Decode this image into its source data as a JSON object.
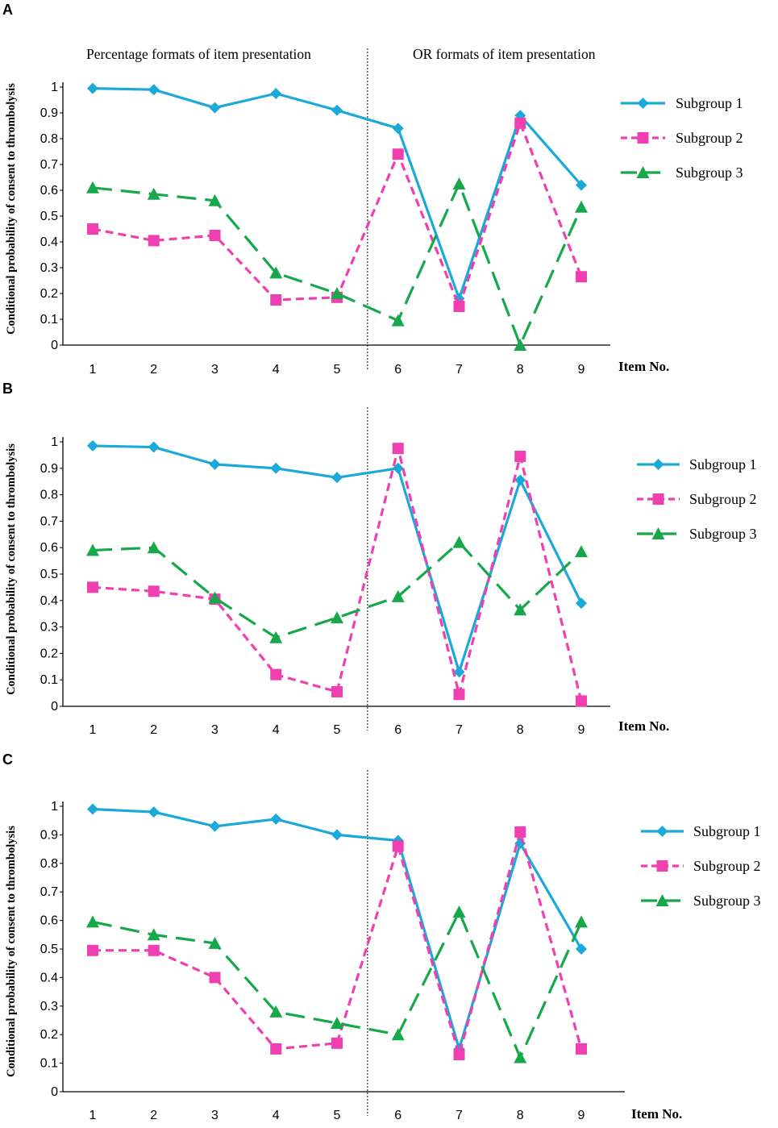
{
  "colors": {
    "subgroup1": "#1aa9d9",
    "subgroup2": "#ef3fb0",
    "subgroup3": "#16a84a",
    "axis": "#000000"
  },
  "chart_data": [
    {
      "type": "line",
      "panel_label": "A",
      "header_left": "Percentage formats of item presentation",
      "header_right": "OR formats of item presentation",
      "ylabel": "Conditional probability of consent to thrombolysis",
      "xlabel": "Item No.",
      "categories": [
        "1",
        "2",
        "3",
        "4",
        "5",
        "6",
        "7",
        "8",
        "9"
      ],
      "y_ticks": [
        "0",
        "0.1",
        "0.2",
        "0.3",
        "0.4",
        "0.5",
        "0.6",
        "0.7",
        "0.8",
        "0.9",
        "1"
      ],
      "ylim": [
        0,
        1
      ],
      "divider_between": [
        5,
        6
      ],
      "legend_position": "right",
      "series": [
        {
          "name": "Subgroup 1",
          "marker": "diamond",
          "style": "solid",
          "values": [
            0.995,
            0.99,
            0.92,
            0.975,
            0.91,
            0.84,
            0.18,
            0.89,
            0.62
          ]
        },
        {
          "name": "Subgroup 2",
          "marker": "square",
          "style": "dashed",
          "values": [
            0.45,
            0.405,
            0.425,
            0.175,
            0.185,
            0.74,
            0.15,
            0.86,
            0.265
          ]
        },
        {
          "name": "Subgroup 3",
          "marker": "triangle",
          "style": "longdash",
          "values": [
            0.61,
            0.585,
            0.56,
            0.28,
            0.2,
            0.095,
            0.625,
            0.0,
            0.535
          ]
        }
      ]
    },
    {
      "type": "line",
      "panel_label": "B",
      "ylabel": "Conditional probability of consent to thrombolysis",
      "xlabel": "Item No.",
      "categories": [
        "1",
        "2",
        "3",
        "4",
        "5",
        "6",
        "7",
        "8",
        "9"
      ],
      "y_ticks": [
        "0",
        "0.1",
        "0.2",
        "0.3",
        "0.4",
        "0.5",
        "0.6",
        "0.7",
        "0.8",
        "0.9",
        "1"
      ],
      "ylim": [
        0,
        1
      ],
      "divider_between": [
        5,
        6
      ],
      "legend_position": "right",
      "series": [
        {
          "name": "Subgroup 1",
          "marker": "diamond",
          "style": "solid",
          "values": [
            0.985,
            0.98,
            0.915,
            0.9,
            0.865,
            0.9,
            0.13,
            0.855,
            0.39
          ]
        },
        {
          "name": "Subgroup 2",
          "marker": "square",
          "style": "dashed",
          "values": [
            0.45,
            0.435,
            0.405,
            0.12,
            0.055,
            0.975,
            0.045,
            0.945,
            0.02
          ]
        },
        {
          "name": "Subgroup 3",
          "marker": "triangle",
          "style": "longdash",
          "values": [
            0.59,
            0.6,
            0.41,
            0.26,
            0.335,
            0.415,
            0.62,
            0.365,
            0.585
          ]
        }
      ]
    },
    {
      "type": "line",
      "panel_label": "C",
      "ylabel": "Conditional probability of consent to thrombolysis",
      "xlabel": "Item No.",
      "categories": [
        "1",
        "2",
        "3",
        "4",
        "5",
        "6",
        "7",
        "8",
        "9"
      ],
      "y_ticks": [
        "0",
        "0.1",
        "0.2",
        "0.3",
        "0.4",
        "0.5",
        "0.6",
        "0.7",
        "0.8",
        "0.9",
        "1"
      ],
      "ylim": [
        0,
        1
      ],
      "divider_between": [
        5,
        6
      ],
      "legend_position": "right",
      "series": [
        {
          "name": "Subgroup 1",
          "marker": "diamond",
          "style": "solid",
          "values": [
            0.99,
            0.98,
            0.93,
            0.955,
            0.9,
            0.88,
            0.15,
            0.87,
            0.5
          ]
        },
        {
          "name": "Subgroup 2",
          "marker": "square",
          "style": "dashed",
          "values": [
            0.495,
            0.495,
            0.4,
            0.15,
            0.17,
            0.86,
            0.13,
            0.91,
            0.15
          ]
        },
        {
          "name": "Subgroup 3",
          "marker": "triangle",
          "style": "longdash",
          "values": [
            0.595,
            0.55,
            0.52,
            0.28,
            0.24,
            0.2,
            0.63,
            0.12,
            0.595
          ]
        }
      ]
    }
  ]
}
